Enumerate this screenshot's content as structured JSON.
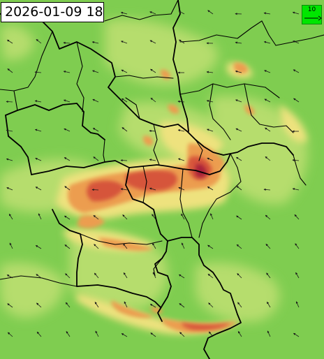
{
  "map": {
    "timestamp": "2026-01-09 18",
    "legend": {
      "reference_value": "10",
      "background_color": "#00e600"
    },
    "field_colors": {
      "base_green": "#7fcd50",
      "light_green": "#b6dd6d",
      "yellow": "#eee27e",
      "orange": "#ec9d4f",
      "red": "#d6543a",
      "dark_red": "#a8243a"
    },
    "boundary_color": "#000000",
    "wind_arrow_color": "#1a1a1a"
  }
}
